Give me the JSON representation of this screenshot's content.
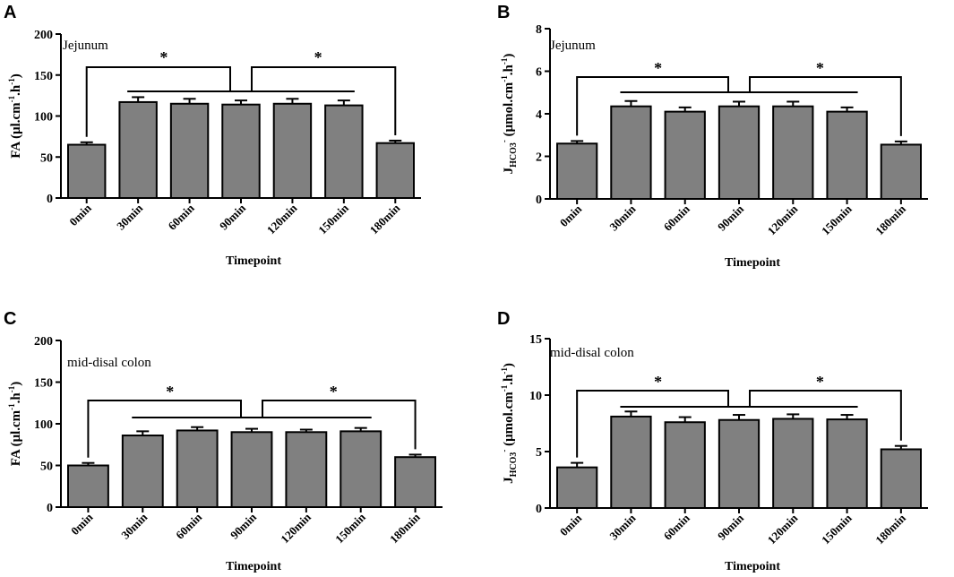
{
  "chart_data": [
    {
      "panel": "A",
      "type": "bar",
      "annotation": "Jejunum",
      "categories": [
        "0min",
        "30min",
        "60min",
        "90min",
        "120min",
        "150min",
        "180min"
      ],
      "values": [
        65,
        117,
        115,
        114,
        115,
        113,
        67
      ],
      "errors": [
        3,
        6,
        6,
        5,
        6,
        6,
        3
      ],
      "xlabel": "Timepoint",
      "ylabel": {
        "main": "FA (μl.cm",
        "sup1": "-1",
        "mid": ".h",
        "sup2": "-1",
        "end": ")"
      },
      "ylim": [
        0,
        200
      ],
      "yticks": [
        0,
        50,
        100,
        150,
        200
      ],
      "tick_labels": [
        "0",
        "50",
        "100",
        "150",
        "200"
      ],
      "bar_color": "#808080",
      "significance": [
        {
          "label": "*"
        },
        {
          "label": "*"
        }
      ]
    },
    {
      "panel": "B",
      "type": "bar",
      "annotation": "Jejunum",
      "categories": [
        "0min",
        "30min",
        "60min",
        "90min",
        "120min",
        "150min",
        "180min"
      ],
      "values": [
        2.6,
        4.35,
        4.1,
        4.35,
        4.35,
        4.1,
        2.55
      ],
      "errors": [
        0.12,
        0.25,
        0.2,
        0.22,
        0.22,
        0.2,
        0.15
      ],
      "xlabel": "Timepoint",
      "ylabel": {
        "main": "J",
        "sub": "HCO3",
        "sup1": "-",
        "end": " (μmol.cm",
        "sup2": "-1",
        "mid": ".h",
        "sup3": "-1",
        "close": ")"
      },
      "ylim": [
        0,
        8
      ],
      "yticks": [
        0,
        2,
        4,
        6,
        8
      ],
      "tick_labels": [
        "0",
        "2",
        "4",
        "6",
        "8"
      ],
      "bar_color": "#808080",
      "significance": [
        {
          "label": "*"
        },
        {
          "label": "*"
        }
      ]
    },
    {
      "panel": "C",
      "type": "bar",
      "annotation": "mid-disal colon",
      "categories": [
        "0min",
        "30min",
        "60min",
        "90min",
        "120min",
        "150min",
        "180min"
      ],
      "values": [
        50,
        86,
        92,
        90,
        90,
        91,
        60
      ],
      "errors": [
        3,
        5,
        4,
        4,
        3,
        4,
        3
      ],
      "xlabel": "Timepoint",
      "ylabel": {
        "main": "FA (μl.cm",
        "sup1": "-1",
        "mid": ".h",
        "sup2": "-1",
        "end": ")"
      },
      "ylim": [
        0,
        200
      ],
      "yticks": [
        0,
        50,
        100,
        150,
        200
      ],
      "tick_labels": [
        "0",
        "50",
        "100",
        "150",
        "200"
      ],
      "bar_color": "#808080",
      "significance": [
        {
          "label": "*"
        },
        {
          "label": "*"
        }
      ]
    },
    {
      "panel": "D",
      "type": "bar",
      "annotation": "mid-disal colon",
      "categories": [
        "0min",
        "30min",
        "60min",
        "90min",
        "120min",
        "150min",
        "180min"
      ],
      "values": [
        3.6,
        8.1,
        7.6,
        7.8,
        7.9,
        7.85,
        5.2
      ],
      "errors": [
        0.4,
        0.45,
        0.45,
        0.45,
        0.4,
        0.4,
        0.3
      ],
      "xlabel": "Timepoint",
      "ylabel": {
        "main": "J",
        "sub": "HCO3",
        "sup1": "-",
        "end": " (μmol.cm",
        "sup2": "-1",
        "mid": ".h",
        "sup3": "-1",
        "close": ")"
      },
      "ylim": [
        0,
        15
      ],
      "yticks": [
        0,
        5,
        10,
        15
      ],
      "tick_labels": [
        "0",
        "5",
        "10",
        "15"
      ],
      "bar_color": "#808080",
      "significance": [
        {
          "label": "*"
        },
        {
          "label": "*"
        }
      ]
    }
  ]
}
